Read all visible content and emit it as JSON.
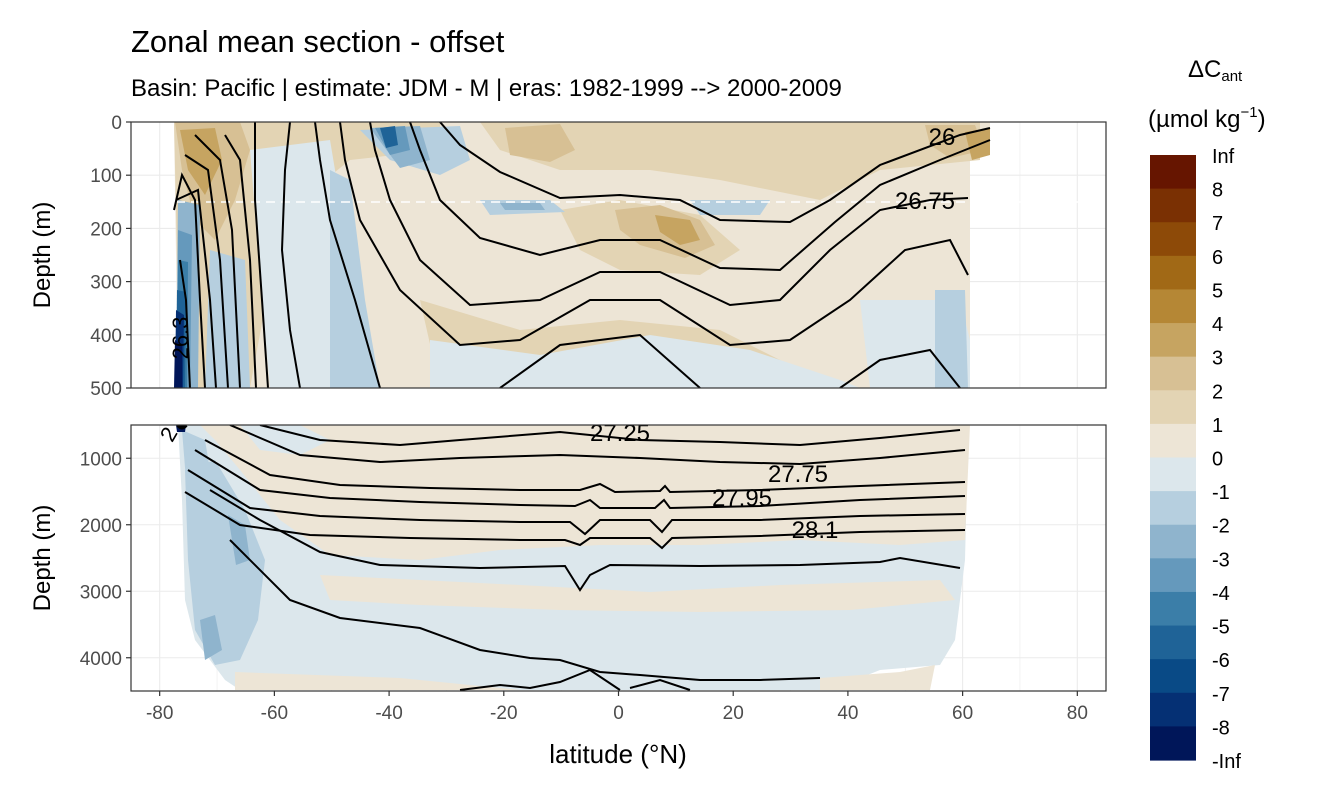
{
  "chart_data": {
    "type": "filled-contour section",
    "title": "Zonal mean section - offset",
    "subtitle": "Basin: Pacific | estimate: JDM - M | eras: 1982-1999 --> 2000-2009",
    "xlabel": "latitude (°N)",
    "xlim": [
      -85,
      85
    ],
    "xticks": [
      "-80",
      "-60",
      "-40",
      "-20",
      "0",
      "20",
      "40",
      "60",
      "80"
    ],
    "panels": [
      {
        "ylabel": "Depth (m)",
        "ylim": [
          0,
          500
        ],
        "yticks": [
          "0",
          "100",
          "200",
          "300",
          "400",
          "500"
        ],
        "reference_depth": 150,
        "contour_labels": [
          "26",
          "26.75",
          "26.3"
        ]
      },
      {
        "ylabel": "Depth (m)",
        "ylim": [
          500,
          4500
        ],
        "yticks": [
          "1000",
          "2000",
          "3000",
          "4000"
        ],
        "contour_labels": [
          "27.25",
          "27.75",
          "27.95",
          "28.1",
          "2"
        ]
      }
    ],
    "legend": {
      "title_symbol": "ΔC",
      "title_subscript": "ant",
      "title_unit": "(µmol kg",
      "title_unit_superscript": "−1",
      "title_unit_end": ")",
      "labels": [
        "Inf",
        "8",
        "7",
        "6",
        "5",
        "4",
        "3",
        "2",
        "1",
        "0",
        "-1",
        "-2",
        "-3",
        "-4",
        "-5",
        "-6",
        "-7",
        "-8",
        "-Inf"
      ],
      "colors": [
        "#661500",
        "#7a3003",
        "#8d4a08",
        "#a16916",
        "#b58735",
        "#c6a461",
        "#d7c094",
        "#e3d4b4",
        "#ede5d6",
        "#dce7ec",
        "#b6cfdf",
        "#8fb4cd",
        "#6599bc",
        "#3b7ea8",
        "#1f6397",
        "#094a86",
        "#053074",
        "#001659"
      ]
    }
  }
}
